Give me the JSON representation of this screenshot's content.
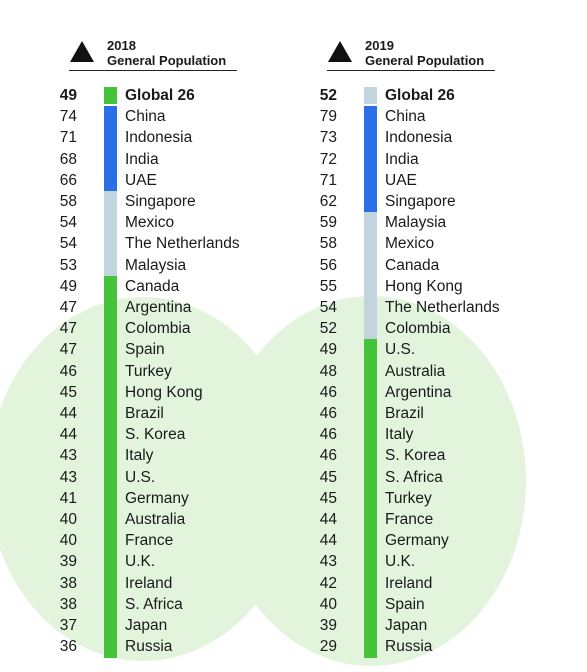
{
  "colors": {
    "dark_blue": "#2b6fe6",
    "light_blue": "#c2d5de",
    "green": "#45c43b",
    "background_circle": "#e2f5dc"
  },
  "columns": [
    {
      "year": "2018",
      "subtitle": "General Population",
      "icon": "triangle-icon",
      "rows": [
        {
          "value": "49",
          "label": "Global 26",
          "group": "green"
        },
        {
          "value": "74",
          "label": "China",
          "group": "dark_blue"
        },
        {
          "value": "71",
          "label": "Indonesia",
          "group": "dark_blue"
        },
        {
          "value": "68",
          "label": "India",
          "group": "dark_blue"
        },
        {
          "value": "66",
          "label": "UAE",
          "group": "dark_blue"
        },
        {
          "value": "58",
          "label": "Singapore",
          "group": "light_blue"
        },
        {
          "value": "54",
          "label": "Mexico",
          "group": "light_blue"
        },
        {
          "value": "54",
          "label": "The Netherlands",
          "group": "light_blue"
        },
        {
          "value": "53",
          "label": "Malaysia",
          "group": "light_blue"
        },
        {
          "value": "49",
          "label": "Canada",
          "group": "green"
        },
        {
          "value": "47",
          "label": "Argentina",
          "group": "green"
        },
        {
          "value": "47",
          "label": "Colombia",
          "group": "green"
        },
        {
          "value": "47",
          "label": "Spain",
          "group": "green"
        },
        {
          "value": "46",
          "label": "Turkey",
          "group": "green"
        },
        {
          "value": "45",
          "label": "Hong Kong",
          "group": "green"
        },
        {
          "value": "44",
          "label": "Brazil",
          "group": "green"
        },
        {
          "value": "44",
          "label": "S. Korea",
          "group": "green"
        },
        {
          "value": "43",
          "label": "Italy",
          "group": "green"
        },
        {
          "value": "43",
          "label": "U.S.",
          "group": "green"
        },
        {
          "value": "41",
          "label": "Germany",
          "group": "green"
        },
        {
          "value": "40",
          "label": "Australia",
          "group": "green"
        },
        {
          "value": "40",
          "label": "France",
          "group": "green"
        },
        {
          "value": "39",
          "label": "U.K.",
          "group": "green"
        },
        {
          "value": "38",
          "label": "Ireland",
          "group": "green"
        },
        {
          "value": "38",
          "label": "S. Africa",
          "group": "green"
        },
        {
          "value": "37",
          "label": "Japan",
          "group": "green"
        },
        {
          "value": "36",
          "label": "Russia",
          "group": "green"
        }
      ]
    },
    {
      "year": "2019",
      "subtitle": "General Population",
      "icon": "triangle-icon",
      "rows": [
        {
          "value": "52",
          "label": "Global 26",
          "group": "light_blue"
        },
        {
          "value": "79",
          "label": "China",
          "group": "dark_blue"
        },
        {
          "value": "73",
          "label": "Indonesia",
          "group": "dark_blue"
        },
        {
          "value": "72",
          "label": "India",
          "group": "dark_blue"
        },
        {
          "value": "71",
          "label": "UAE",
          "group": "dark_blue"
        },
        {
          "value": "62",
          "label": "Singapore",
          "group": "dark_blue"
        },
        {
          "value": "59",
          "label": "Malaysia",
          "group": "light_blue"
        },
        {
          "value": "58",
          "label": "Mexico",
          "group": "light_blue"
        },
        {
          "value": "56",
          "label": "Canada",
          "group": "light_blue"
        },
        {
          "value": "55",
          "label": "Hong Kong",
          "group": "light_blue"
        },
        {
          "value": "54",
          "label": "The Netherlands",
          "group": "light_blue"
        },
        {
          "value": "52",
          "label": "Colombia",
          "group": "light_blue"
        },
        {
          "value": "49",
          "label": "U.S.",
          "group": "green"
        },
        {
          "value": "48",
          "label": "Australia",
          "group": "green"
        },
        {
          "value": "46",
          "label": "Argentina",
          "group": "green"
        },
        {
          "value": "46",
          "label": "Brazil",
          "group": "green"
        },
        {
          "value": "46",
          "label": "Italy",
          "group": "green"
        },
        {
          "value": "46",
          "label": "S. Korea",
          "group": "green"
        },
        {
          "value": "45",
          "label": "S. Africa",
          "group": "green"
        },
        {
          "value": "45",
          "label": "Turkey",
          "group": "green"
        },
        {
          "value": "44",
          "label": "France",
          "group": "green"
        },
        {
          "value": "44",
          "label": "Germany",
          "group": "green"
        },
        {
          "value": "43",
          "label": "U.K.",
          "group": "green"
        },
        {
          "value": "42",
          "label": "Ireland",
          "group": "green"
        },
        {
          "value": "40",
          "label": "Spain",
          "group": "green"
        },
        {
          "value": "39",
          "label": "Japan",
          "group": "green"
        },
        {
          "value": "29",
          "label": "Russia",
          "group": "green"
        }
      ]
    }
  ],
  "chart_data": [
    {
      "type": "table",
      "title": "2018 General Population",
      "categories": [
        "Global 26",
        "China",
        "Indonesia",
        "India",
        "UAE",
        "Singapore",
        "Mexico",
        "The Netherlands",
        "Malaysia",
        "Canada",
        "Argentina",
        "Colombia",
        "Spain",
        "Turkey",
        "Hong Kong",
        "Brazil",
        "S. Korea",
        "Italy",
        "U.S.",
        "Germany",
        "Australia",
        "France",
        "U.K.",
        "Ireland",
        "S. Africa",
        "Japan",
        "Russia"
      ],
      "values": [
        49,
        74,
        71,
        68,
        66,
        58,
        54,
        54,
        53,
        49,
        47,
        47,
        47,
        46,
        45,
        44,
        44,
        43,
        43,
        41,
        40,
        40,
        39,
        38,
        38,
        37,
        36
      ]
    },
    {
      "type": "table",
      "title": "2019 General Population",
      "categories": [
        "Global 26",
        "China",
        "Indonesia",
        "India",
        "UAE",
        "Singapore",
        "Malaysia",
        "Mexico",
        "Canada",
        "Hong Kong",
        "The Netherlands",
        "Colombia",
        "U.S.",
        "Australia",
        "Argentina",
        "Brazil",
        "Italy",
        "S. Korea",
        "S. Africa",
        "Turkey",
        "France",
        "Germany",
        "U.K.",
        "Ireland",
        "Spain",
        "Japan",
        "Russia"
      ],
      "values": [
        52,
        79,
        73,
        72,
        71,
        62,
        59,
        58,
        56,
        55,
        54,
        52,
        49,
        48,
        46,
        46,
        46,
        46,
        45,
        45,
        44,
        44,
        43,
        42,
        40,
        39,
        29
      ]
    }
  ]
}
